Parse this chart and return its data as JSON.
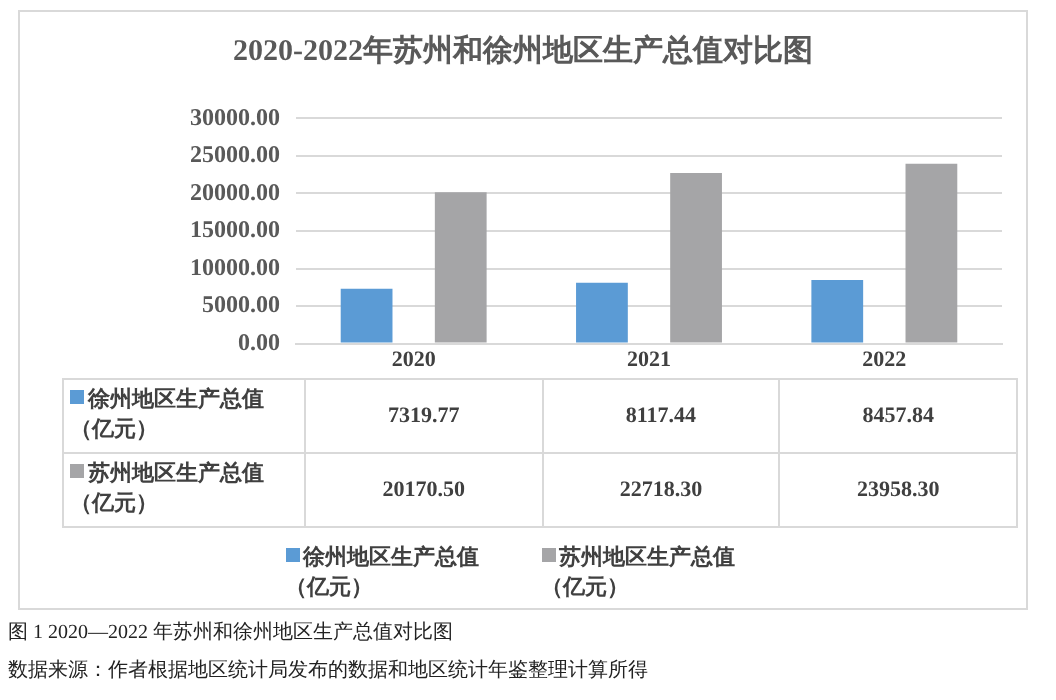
{
  "chart_data": {
    "type": "bar",
    "title": "2020-2022年苏州和徐州地区生产总值对比图",
    "categories": [
      "2020",
      "2021",
      "2022"
    ],
    "series": [
      {
        "name": "徐州地区生产总值（亿元）",
        "color": "#5b9bd5",
        "values": [
          7319.77,
          8117.44,
          8457.84
        ],
        "value_labels": [
          "7319.77",
          "8117.44",
          "8457.84"
        ]
      },
      {
        "name": "苏州地区生产总值（亿元）",
        "color": "#a5a5a7",
        "values": [
          20170.5,
          22718.3,
          23958.3
        ],
        "value_labels": [
          "20170.50",
          "22718.30",
          "23958.30"
        ]
      }
    ],
    "ylim": [
      0,
      30000
    ],
    "yticks": [
      {
        "value": 0,
        "label": "0.00"
      },
      {
        "value": 5000,
        "label": "5000.00"
      },
      {
        "value": 10000,
        "label": "10000.00"
      },
      {
        "value": 15000,
        "label": "15000.00"
      },
      {
        "value": 20000,
        "label": "20000.00"
      },
      {
        "value": 25000,
        "label": "25000.00"
      },
      {
        "value": 30000,
        "label": "30000.00"
      }
    ],
    "grid": "y",
    "legend": "bottom",
    "annotations": [
      "图 1 2020—2022 年苏州和徐州地区生产总值对比图",
      "数据来源：作者根据地区统计局发布的数据和地区统计年鉴整理计算所得"
    ]
  }
}
